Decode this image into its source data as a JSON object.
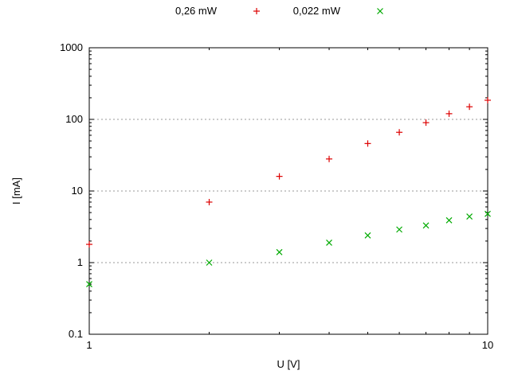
{
  "chart_data": {
    "type": "scatter",
    "title": "",
    "xlabel": "U [V]",
    "ylabel": "I [mA]",
    "x_scale": "log",
    "y_scale": "log",
    "xlim": [
      1,
      10
    ],
    "ylim": [
      0.1,
      1000
    ],
    "x_ticks": [
      1,
      10
    ],
    "x_tick_labels": [
      "1",
      "10"
    ],
    "y_ticks": [
      0.1,
      1,
      10,
      100,
      1000
    ],
    "y_tick_labels": [
      "0.1",
      "1",
      "10",
      "100",
      "1000"
    ],
    "grid_y": [
      1,
      10,
      100
    ],
    "grid_on": true,
    "legend_position": "top-center",
    "x": [
      1,
      2,
      3,
      4,
      5,
      6,
      7,
      8,
      9,
      10
    ],
    "series": [
      {
        "name": "0,26 mW",
        "marker": "plus",
        "color": "#dd0000",
        "values": [
          1.8,
          7,
          16,
          28,
          46,
          66,
          90,
          120,
          150,
          185
        ]
      },
      {
        "name": "0,022 mW",
        "marker": "cross",
        "color": "#00aa00",
        "values": [
          0.5,
          1.0,
          1.4,
          1.9,
          2.4,
          2.9,
          3.3,
          3.9,
          4.4,
          4.8
        ]
      }
    ],
    "colors": {
      "grid": "#9a9a9a",
      "axis": "#000000",
      "background": "#ffffff"
    }
  }
}
